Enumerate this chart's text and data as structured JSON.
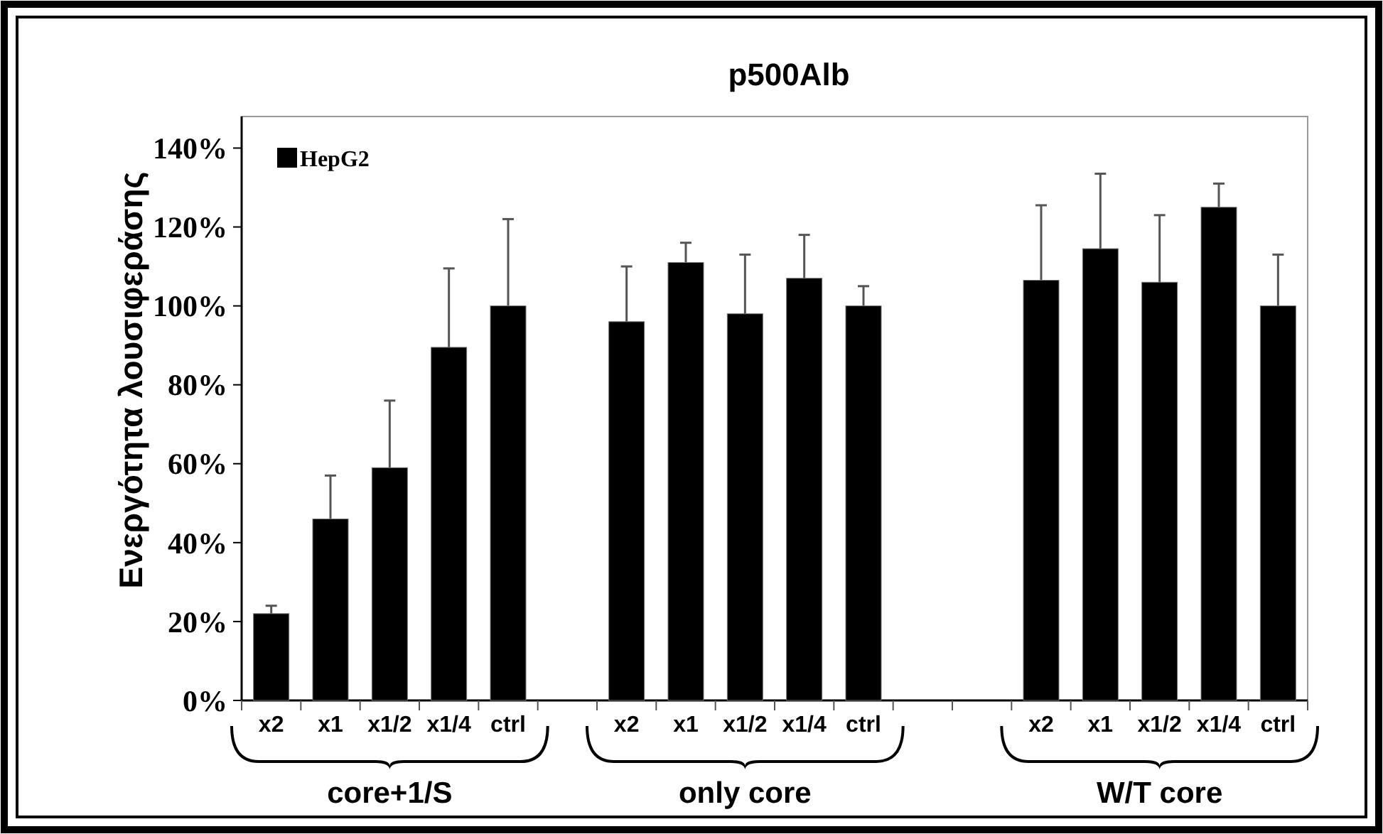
{
  "chart_data": {
    "type": "bar",
    "title": "p500Alb",
    "ylabel": "Ενεργότητα λουσιφεράσης",
    "categories": [
      "x2",
      "x1",
      "x1/2",
      "x1/4",
      "ctrl",
      null,
      "x2",
      "x1",
      "x1/2",
      "x1/4",
      "ctrl",
      null,
      null,
      "x2",
      "x1",
      "x1/2",
      "x1/4",
      "ctrl"
    ],
    "series": [
      {
        "name": "HepG2",
        "color": "#000000",
        "values": [
          22,
          46,
          59,
          89.5,
          100,
          null,
          96,
          111,
          98,
          107,
          100,
          null,
          null,
          106.5,
          114.5,
          106,
          125,
          100
        ],
        "errors": [
          2,
          11,
          17,
          20,
          22,
          null,
          14,
          5,
          15,
          11,
          5,
          null,
          null,
          19,
          19,
          17,
          6,
          13
        ]
      }
    ],
    "ylim": [
      0,
      148
    ],
    "yticks": [
      {
        "value": 0,
        "label": "0%"
      },
      {
        "value": 20,
        "label": "20%"
      },
      {
        "value": 40,
        "label": "40%"
      },
      {
        "value": 60,
        "label": "60%"
      },
      {
        "value": 80,
        "label": "80%"
      },
      {
        "value": 100,
        "label": "100%"
      },
      {
        "value": 120,
        "label": "120%"
      },
      {
        "value": 140,
        "label": "140%"
      }
    ],
    "annotations": [
      "core+1/S",
      "only core",
      "W/T core"
    ],
    "legend": "top left",
    "grid": false
  }
}
